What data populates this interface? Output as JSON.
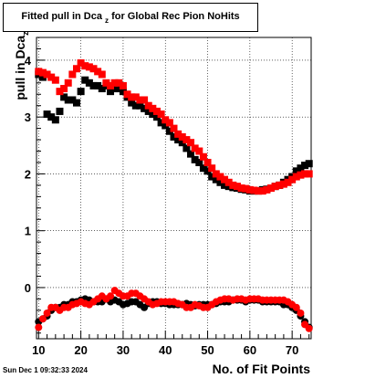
{
  "title": {
    "prefix": "Fitted pull in Dca",
    "sub": "z",
    "suffix": " for Global Rec Pion NoHits"
  },
  "timestamp": "Sun Dec  1 09:32:33 2024",
  "colors": {
    "series1": "#000000",
    "series2": "#ff0000",
    "grid": "#000000"
  },
  "chart_data": {
    "type": "scatter",
    "title": "Fitted pull in Dca_z for Global Rec Pion NoHits",
    "xlabel": "No. of Fit Points",
    "ylabel": "pull in Dca_z",
    "xlim": [
      9.5,
      74.5
    ],
    "ylim": [
      -0.9,
      4.4
    ],
    "x_ticks": [
      10,
      20,
      30,
      40,
      50,
      60,
      70
    ],
    "y_ticks": [
      0,
      1,
      2,
      3,
      4
    ],
    "grid": true,
    "legend": "none",
    "x": [
      10,
      11,
      12,
      13,
      14,
      15,
      16,
      17,
      18,
      19,
      20,
      21,
      22,
      23,
      24,
      25,
      26,
      27,
      28,
      29,
      30,
      31,
      32,
      33,
      34,
      35,
      36,
      37,
      38,
      39,
      40,
      41,
      42,
      43,
      44,
      45,
      46,
      47,
      48,
      49,
      50,
      51,
      52,
      53,
      54,
      55,
      56,
      57,
      58,
      59,
      60,
      61,
      62,
      63,
      64,
      65,
      66,
      67,
      68,
      69,
      70,
      71,
      72,
      73,
      74
    ],
    "series": [
      {
        "name": "",
        "marker": "square",
        "values": [
          3.75,
          3.7,
          3.05,
          3.0,
          2.95,
          3.1,
          3.35,
          3.3,
          3.3,
          3.25,
          3.45,
          3.65,
          3.6,
          3.55,
          3.55,
          3.5,
          3.55,
          3.45,
          3.5,
          3.5,
          3.45,
          3.35,
          3.25,
          3.2,
          3.2,
          3.15,
          3.1,
          3.05,
          3.0,
          2.9,
          2.85,
          2.75,
          2.65,
          2.6,
          2.55,
          2.45,
          2.35,
          2.25,
          2.2,
          2.1,
          2.05,
          1.95,
          1.9,
          1.85,
          1.8,
          1.78,
          1.76,
          1.75,
          1.73,
          1.72,
          1.7,
          1.7,
          1.7,
          1.72,
          1.73,
          1.75,
          1.78,
          1.8,
          1.85,
          1.9,
          1.95,
          2.05,
          2.1,
          2.15,
          2.18
        ]
      },
      {
        "name": "",
        "marker": "square",
        "values": [
          3.8,
          3.78,
          3.75,
          3.7,
          3.65,
          3.45,
          3.5,
          3.6,
          3.75,
          3.85,
          3.95,
          3.9,
          3.88,
          3.85,
          3.8,
          3.75,
          3.6,
          3.55,
          3.6,
          3.6,
          3.55,
          3.4,
          3.35,
          3.35,
          3.3,
          3.3,
          3.2,
          3.15,
          3.1,
          3.05,
          2.95,
          2.9,
          2.8,
          2.7,
          2.65,
          2.6,
          2.55,
          2.45,
          2.4,
          2.3,
          2.2,
          2.1,
          2.0,
          1.95,
          1.9,
          1.85,
          1.8,
          1.78,
          1.75,
          1.74,
          1.72,
          1.71,
          1.7,
          1.7,
          1.72,
          1.75,
          1.78,
          1.8,
          1.82,
          1.85,
          1.9,
          1.95,
          1.98,
          2.0,
          2.0
        ]
      },
      {
        "name": "",
        "marker": "circle",
        "values": [
          -0.6,
          -0.55,
          -0.5,
          -0.4,
          -0.35,
          -0.35,
          -0.3,
          -0.3,
          -0.25,
          -0.25,
          -0.22,
          -0.2,
          -0.22,
          -0.25,
          -0.25,
          -0.25,
          -0.2,
          -0.25,
          -0.22,
          -0.25,
          -0.3,
          -0.28,
          -0.25,
          -0.25,
          -0.3,
          -0.35,
          -0.28,
          -0.25,
          -0.25,
          -0.28,
          -0.28,
          -0.3,
          -0.3,
          -0.3,
          -0.3,
          -0.28,
          -0.3,
          -0.32,
          -0.3,
          -0.3,
          -0.3,
          -0.3,
          -0.28,
          -0.25,
          -0.25,
          -0.25,
          -0.22,
          -0.22,
          -0.22,
          -0.25,
          -0.22,
          -0.22,
          -0.22,
          -0.25,
          -0.25,
          -0.25,
          -0.25,
          -0.25,
          -0.3,
          -0.3,
          -0.35,
          -0.4,
          -0.5,
          -0.6,
          -0.7
        ]
      },
      {
        "name": "",
        "marker": "circle",
        "values": [
          -0.7,
          -0.55,
          -0.45,
          -0.35,
          -0.35,
          -0.4,
          -0.35,
          -0.35,
          -0.3,
          -0.28,
          -0.25,
          -0.28,
          -0.3,
          -0.25,
          -0.2,
          -0.15,
          -0.2,
          -0.15,
          -0.05,
          -0.1,
          -0.15,
          -0.15,
          -0.1,
          -0.1,
          -0.15,
          -0.2,
          -0.25,
          -0.3,
          -0.28,
          -0.25,
          -0.25,
          -0.25,
          -0.25,
          -0.28,
          -0.3,
          -0.35,
          -0.35,
          -0.3,
          -0.32,
          -0.35,
          -0.35,
          -0.3,
          -0.25,
          -0.22,
          -0.2,
          -0.2,
          -0.22,
          -0.2,
          -0.2,
          -0.22,
          -0.2,
          -0.2,
          -0.2,
          -0.22,
          -0.22,
          -0.22,
          -0.22,
          -0.22,
          -0.22,
          -0.25,
          -0.3,
          -0.35,
          -0.45,
          -0.65,
          -0.72
        ]
      }
    ]
  }
}
